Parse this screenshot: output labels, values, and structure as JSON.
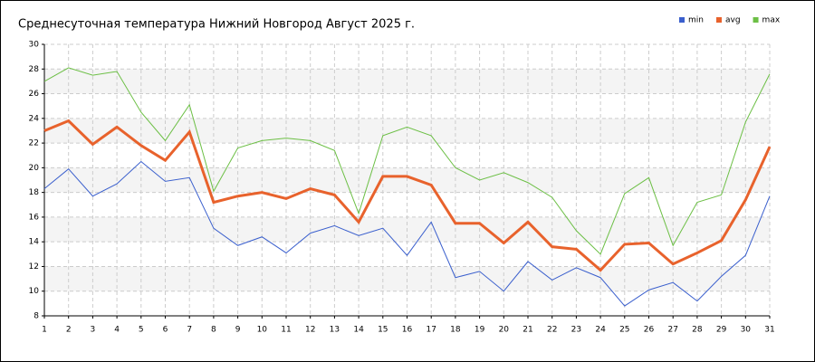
{
  "chart_data": {
    "type": "line",
    "title": "Среднесуточная температура Нижний Новгород  Август 2025 г.",
    "x": [
      1,
      2,
      3,
      4,
      5,
      6,
      7,
      8,
      9,
      10,
      11,
      12,
      13,
      14,
      15,
      16,
      17,
      18,
      19,
      20,
      21,
      22,
      23,
      24,
      25,
      26,
      27,
      28,
      29,
      30,
      31
    ],
    "xlim": [
      1,
      31
    ],
    "xticks": [
      1,
      2,
      3,
      4,
      5,
      6,
      7,
      8,
      9,
      10,
      11,
      12,
      13,
      14,
      15,
      16,
      17,
      18,
      19,
      20,
      21,
      22,
      23,
      24,
      25,
      26,
      27,
      28,
      29,
      30,
      31
    ],
    "ylim": [
      8,
      30
    ],
    "yticks": [
      8,
      10,
      12,
      14,
      16,
      18,
      20,
      22,
      24,
      26,
      28,
      30
    ],
    "grid": true,
    "legend": "top-right",
    "series": [
      {
        "name": "min",
        "color": "#3a5fcd",
        "values": [
          18.3,
          19.9,
          17.7,
          18.7,
          20.5,
          18.9,
          19.2,
          15.1,
          13.7,
          14.4,
          13.1,
          14.7,
          15.3,
          14.5,
          15.1,
          12.9,
          15.6,
          11.1,
          11.6,
          10.0,
          12.4,
          10.9,
          11.9,
          11.1,
          8.8,
          10.1,
          10.7,
          9.2,
          11.2,
          12.9,
          17.7
        ]
      },
      {
        "name": "avg",
        "color": "#e8622c",
        "values": [
          23.0,
          23.8,
          21.9,
          23.3,
          21.8,
          20.6,
          22.9,
          17.2,
          17.7,
          18.0,
          17.5,
          18.3,
          17.8,
          15.6,
          19.3,
          19.3,
          18.6,
          15.5,
          15.5,
          13.9,
          15.6,
          13.6,
          13.4,
          11.7,
          13.8,
          13.9,
          12.2,
          13.1,
          14.1,
          17.4,
          21.7
        ]
      },
      {
        "name": "max",
        "color": "#6cbf45",
        "values": [
          27.0,
          28.1,
          27.5,
          27.8,
          24.5,
          22.2,
          25.1,
          18.1,
          21.6,
          22.2,
          22.4,
          22.2,
          21.4,
          16.3,
          22.6,
          23.3,
          22.6,
          20.0,
          19.0,
          19.6,
          18.8,
          17.6,
          14.9,
          13.0,
          17.9,
          19.2,
          13.7,
          17.2,
          17.8,
          23.7,
          27.6
        ]
      }
    ]
  }
}
